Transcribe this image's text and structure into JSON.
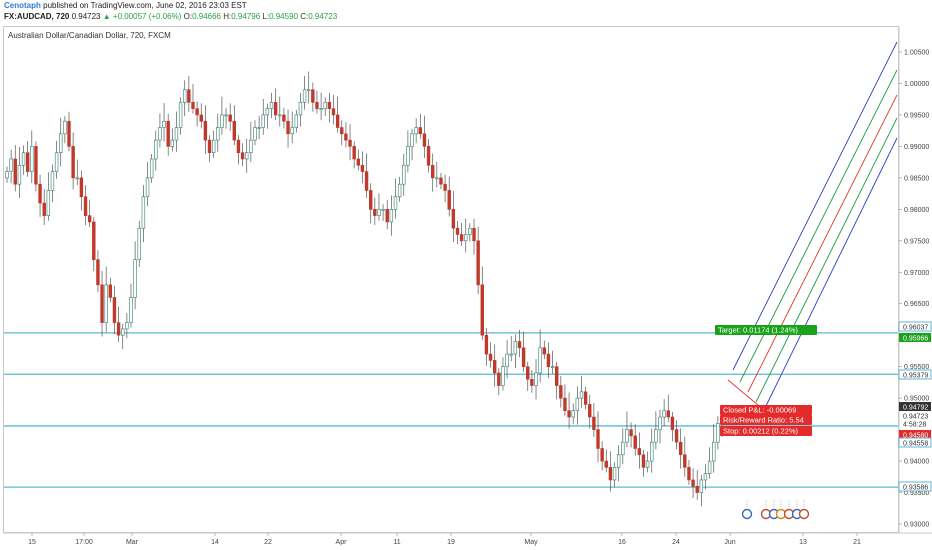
{
  "header": {
    "author": "Cenotaph",
    "published_text": "published on TradingView.com, June 02, 2016 23:03 EST",
    "symbol": "FX:AUDCAD, 720",
    "last_price": "0.94723",
    "change": "+0.00057 (+0.06%)",
    "open_label": "O:",
    "open": "0.94666",
    "high_label": "H:",
    "high": "0.94796",
    "low_label": "L:",
    "low": "0.94590",
    "close_label": "C:",
    "close": "0.94723"
  },
  "chart_title": "Australian Dollar/Canadian Dollar, 720, FXCM",
  "colors": {
    "up_candle": "#26a69a",
    "down_candle": "#c0392b",
    "hline": "#5bb7d4",
    "pitchfork": [
      "#2b3cc9",
      "#1a9c3c",
      "#d93a2b",
      "#1a9c3c",
      "#2b3cc9"
    ],
    "target_green": "#1aa31a",
    "stop_red": "#e32b2b",
    "price_dark": "#333333"
  },
  "price_axis": {
    "ticks": [
      "1.00500",
      "1.00000",
      "0.99500",
      "0.99000",
      "0.98500",
      "0.98000",
      "0.97500",
      "0.97000",
      "0.96500",
      "0.95500",
      "0.95000",
      "0.94000",
      "0.93500",
      "0.93000"
    ],
    "labels": [
      {
        "text": "0.96037",
        "style": "line"
      },
      {
        "text": "0.95966",
        "style": "green"
      },
      {
        "text": "0.95379",
        "style": "line"
      },
      {
        "text": "0.94792",
        "style": "dark"
      },
      {
        "text": "0.94723",
        "style": "plain"
      },
      {
        "text": "4:58:28",
        "style": "plain"
      },
      {
        "text": "0.94580",
        "style": "red"
      },
      {
        "text": "0.94558",
        "style": "line"
      },
      {
        "text": "0.93586",
        "style": "line"
      }
    ]
  },
  "time_axis": {
    "labels": [
      "15",
      "17:00",
      "Mar",
      "14",
      "22",
      "Apr",
      "11",
      "19",
      "May",
      "16",
      "24",
      "Jun",
      "13",
      "21"
    ]
  },
  "horizontal_levels": [
    0.96037,
    0.95379,
    0.94558,
    0.93586
  ],
  "position_tool": {
    "target": "Target: 0.01174 (1.24%)",
    "closed_pl": "Closed P&L: -0.00069",
    "risk_reward": "Risk/Reward Ratio: 5.54",
    "stop": "Stop: 0.00212 (0.22%)"
  },
  "chart_data": {
    "type": "candlestick",
    "title": "Australian Dollar/Canadian Dollar, 720, FXCM",
    "interval": "720",
    "ylim": [
      0.929,
      1.008
    ],
    "x_tick_labels": [
      "15",
      "17:00",
      "Mar",
      "14",
      "22",
      "Apr",
      "11",
      "19",
      "May",
      "16",
      "24",
      "Jun",
      "13",
      "21"
    ],
    "levels": [
      0.96037,
      0.95379,
      0.94558,
      0.93586
    ],
    "closes": [
      0.986,
      0.988,
      0.984,
      0.987,
      0.989,
      0.986,
      0.99,
      0.984,
      0.981,
      0.979,
      0.983,
      0.986,
      0.989,
      0.992,
      0.994,
      0.99,
      0.985,
      0.985,
      0.982,
      0.979,
      0.978,
      0.972,
      0.968,
      0.962,
      0.968,
      0.966,
      0.962,
      0.96,
      0.961,
      0.962,
      0.966,
      0.972,
      0.977,
      0.982,
      0.985,
      0.988,
      0.991,
      0.993,
      0.994,
      0.99,
      0.991,
      0.993,
      0.997,
      0.999,
      0.997,
      0.996,
      0.995,
      0.994,
      0.991,
      0.989,
      0.991,
      0.993,
      0.995,
      0.995,
      0.994,
      0.991,
      0.989,
      0.988,
      0.989,
      0.991,
      0.993,
      0.993,
      0.995,
      0.996,
      0.997,
      0.995,
      0.995,
      0.994,
      0.992,
      0.993,
      0.995,
      0.997,
      0.999,
      0.999,
      0.997,
      0.996,
      0.996,
      0.997,
      0.996,
      0.995,
      0.993,
      0.992,
      0.991,
      0.99,
      0.988,
      0.987,
      0.986,
      0.983,
      0.98,
      0.979,
      0.98,
      0.98,
      0.978,
      0.98,
      0.982,
      0.984,
      0.987,
      0.99,
      0.992,
      0.993,
      0.992,
      0.99,
      0.987,
      0.985,
      0.985,
      0.984,
      0.983,
      0.98,
      0.977,
      0.976,
      0.975,
      0.976,
      0.977,
      0.975,
      0.968,
      0.96,
      0.957,
      0.956,
      0.954,
      0.952,
      0.955,
      0.957,
      0.957,
      0.959,
      0.958,
      0.955,
      0.953,
      0.952,
      0.954,
      0.958,
      0.957,
      0.955,
      0.955,
      0.952,
      0.95,
      0.948,
      0.947,
      0.948,
      0.95,
      0.951,
      0.949,
      0.947,
      0.945,
      0.942,
      0.94,
      0.939,
      0.937,
      0.939,
      0.941,
      0.943,
      0.945,
      0.944,
      0.942,
      0.941,
      0.939,
      0.94,
      0.943,
      0.945,
      0.947,
      0.948,
      0.947,
      0.945,
      0.943,
      0.941,
      0.939,
      0.937,
      0.936,
      0.935,
      0.937,
      0.938,
      0.94,
      0.943,
      0.946,
      0.947
    ]
  }
}
